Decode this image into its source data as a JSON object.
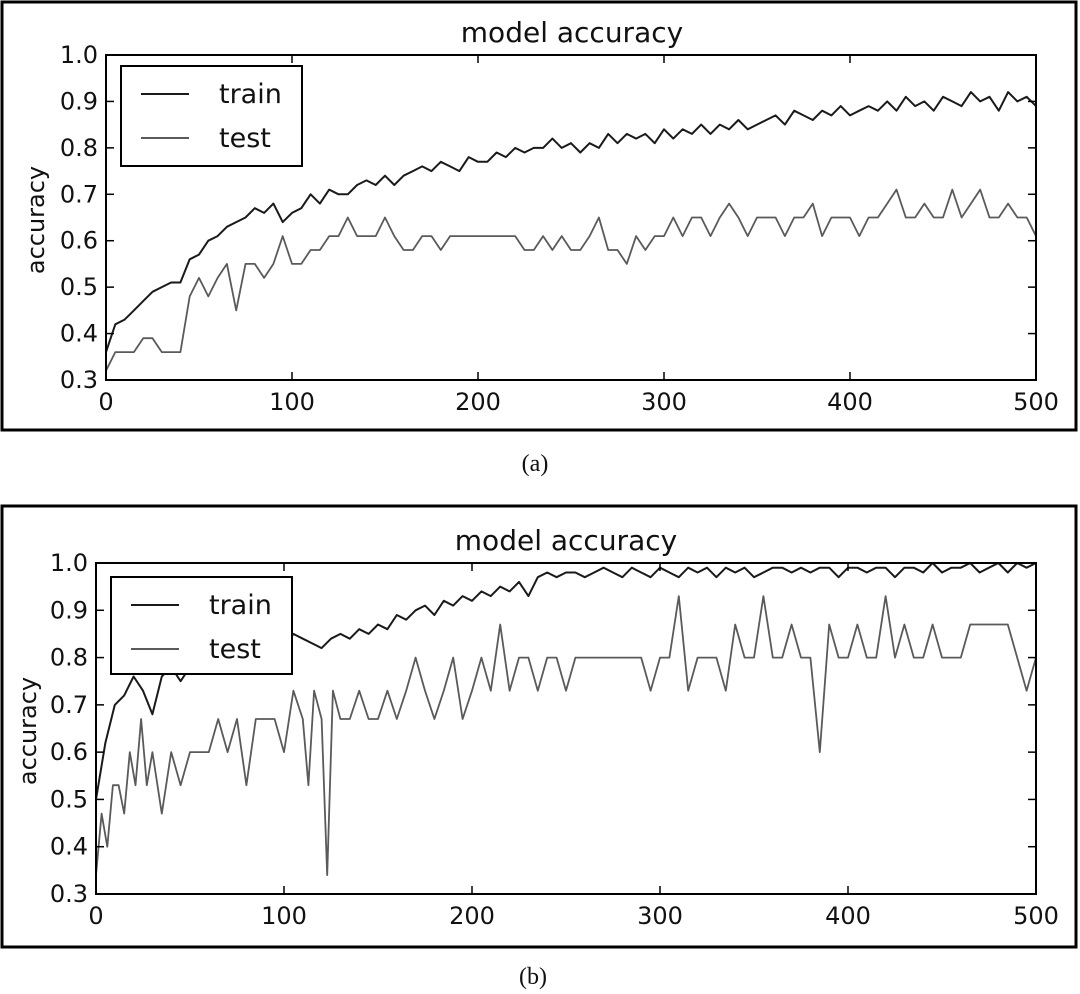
{
  "chart_data": [
    {
      "panel": "a",
      "type": "line",
      "title": "model accuracy",
      "xlabel": "",
      "ylabel": "accuracy",
      "caption": "(a)",
      "xlim": [
        0,
        500
      ],
      "ylim": [
        0.3,
        1.0
      ],
      "xticks": [
        0,
        100,
        200,
        300,
        400,
        500
      ],
      "yticks": [
        0.3,
        0.4,
        0.5,
        0.6,
        0.7,
        0.8,
        0.9,
        1.0
      ],
      "grid": false,
      "legend_position": "top-left",
      "series": [
        {
          "name": "train",
          "color": "#1a1a1a",
          "x": [
            0,
            5,
            10,
            15,
            20,
            25,
            30,
            35,
            40,
            45,
            50,
            55,
            60,
            65,
            70,
            75,
            80,
            85,
            90,
            95,
            100,
            105,
            110,
            115,
            120,
            125,
            130,
            135,
            140,
            145,
            150,
            155,
            160,
            165,
            170,
            175,
            180,
            185,
            190,
            195,
            200,
            205,
            210,
            215,
            220,
            225,
            230,
            235,
            240,
            245,
            250,
            255,
            260,
            265,
            270,
            275,
            280,
            285,
            290,
            295,
            300,
            305,
            310,
            315,
            320,
            325,
            330,
            335,
            340,
            345,
            350,
            355,
            360,
            365,
            370,
            375,
            380,
            385,
            390,
            395,
            400,
            405,
            410,
            415,
            420,
            425,
            430,
            435,
            440,
            445,
            450,
            455,
            460,
            465,
            470,
            475,
            480,
            485,
            490,
            495,
            500
          ],
          "y": [
            0.36,
            0.42,
            0.43,
            0.45,
            0.47,
            0.49,
            0.5,
            0.51,
            0.51,
            0.56,
            0.57,
            0.6,
            0.61,
            0.63,
            0.64,
            0.65,
            0.67,
            0.66,
            0.68,
            0.64,
            0.66,
            0.67,
            0.7,
            0.68,
            0.71,
            0.7,
            0.7,
            0.72,
            0.73,
            0.72,
            0.74,
            0.72,
            0.74,
            0.75,
            0.76,
            0.75,
            0.77,
            0.76,
            0.75,
            0.78,
            0.77,
            0.77,
            0.79,
            0.78,
            0.8,
            0.79,
            0.8,
            0.8,
            0.82,
            0.8,
            0.81,
            0.79,
            0.81,
            0.8,
            0.83,
            0.81,
            0.83,
            0.82,
            0.83,
            0.81,
            0.84,
            0.82,
            0.84,
            0.83,
            0.85,
            0.83,
            0.85,
            0.84,
            0.86,
            0.84,
            0.85,
            0.86,
            0.87,
            0.85,
            0.88,
            0.87,
            0.86,
            0.88,
            0.87,
            0.89,
            0.87,
            0.88,
            0.89,
            0.88,
            0.9,
            0.88,
            0.91,
            0.89,
            0.9,
            0.88,
            0.91,
            0.9,
            0.89,
            0.92,
            0.9,
            0.91,
            0.88,
            0.92,
            0.9,
            0.91,
            0.89
          ]
        },
        {
          "name": "test",
          "color": "#5a5a5a",
          "x": [
            0,
            5,
            10,
            15,
            20,
            25,
            30,
            35,
            40,
            45,
            50,
            55,
            60,
            65,
            70,
            75,
            80,
            85,
            90,
            95,
            100,
            105,
            110,
            115,
            120,
            125,
            130,
            135,
            140,
            145,
            150,
            155,
            160,
            165,
            170,
            175,
            180,
            185,
            190,
            195,
            200,
            205,
            210,
            215,
            220,
            225,
            230,
            235,
            240,
            245,
            250,
            255,
            260,
            265,
            270,
            275,
            280,
            285,
            290,
            295,
            300,
            305,
            310,
            315,
            320,
            325,
            330,
            335,
            340,
            345,
            350,
            355,
            360,
            365,
            370,
            375,
            380,
            385,
            390,
            395,
            400,
            405,
            410,
            415,
            420,
            425,
            430,
            435,
            440,
            445,
            450,
            455,
            460,
            465,
            470,
            475,
            480,
            485,
            490,
            495,
            500
          ],
          "y": [
            0.32,
            0.36,
            0.36,
            0.36,
            0.39,
            0.39,
            0.36,
            0.36,
            0.36,
            0.48,
            0.52,
            0.48,
            0.52,
            0.55,
            0.45,
            0.55,
            0.55,
            0.52,
            0.55,
            0.61,
            0.55,
            0.55,
            0.58,
            0.58,
            0.61,
            0.61,
            0.65,
            0.61,
            0.61,
            0.61,
            0.65,
            0.61,
            0.58,
            0.58,
            0.61,
            0.61,
            0.58,
            0.61,
            0.61,
            0.61,
            0.61,
            0.61,
            0.61,
            0.61,
            0.61,
            0.58,
            0.58,
            0.61,
            0.58,
            0.61,
            0.58,
            0.58,
            0.61,
            0.65,
            0.58,
            0.58,
            0.55,
            0.61,
            0.58,
            0.61,
            0.61,
            0.65,
            0.61,
            0.65,
            0.65,
            0.61,
            0.65,
            0.68,
            0.65,
            0.61,
            0.65,
            0.65,
            0.65,
            0.61,
            0.65,
            0.65,
            0.68,
            0.61,
            0.65,
            0.65,
            0.65,
            0.61,
            0.65,
            0.65,
            0.68,
            0.71,
            0.65,
            0.65,
            0.68,
            0.65,
            0.65,
            0.71,
            0.65,
            0.68,
            0.71,
            0.65,
            0.65,
            0.68,
            0.65,
            0.65,
            0.61
          ]
        }
      ]
    },
    {
      "panel": "b",
      "type": "line",
      "title": "model accuracy",
      "xlabel": "",
      "ylabel": "accuracy",
      "caption": "(b)",
      "xlim": [
        0,
        500
      ],
      "ylim": [
        0.3,
        1.0
      ],
      "xticks": [
        0,
        100,
        200,
        300,
        400,
        500
      ],
      "yticks": [
        0.3,
        0.4,
        0.5,
        0.6,
        0.7,
        0.8,
        0.9,
        1.0
      ],
      "grid": false,
      "legend_position": "top-left",
      "series": [
        {
          "name": "train",
          "color": "#1a1a1a",
          "x": [
            0,
            5,
            10,
            15,
            20,
            25,
            30,
            35,
            40,
            45,
            50,
            55,
            60,
            65,
            70,
            75,
            80,
            85,
            90,
            95,
            100,
            105,
            110,
            115,
            120,
            125,
            130,
            135,
            140,
            145,
            150,
            155,
            160,
            165,
            170,
            175,
            180,
            185,
            190,
            195,
            200,
            205,
            210,
            215,
            220,
            225,
            230,
            235,
            240,
            245,
            250,
            255,
            260,
            265,
            270,
            275,
            280,
            285,
            290,
            295,
            300,
            305,
            310,
            315,
            320,
            325,
            330,
            335,
            340,
            345,
            350,
            355,
            360,
            365,
            370,
            375,
            380,
            385,
            390,
            395,
            400,
            405,
            410,
            415,
            420,
            425,
            430,
            435,
            440,
            445,
            450,
            455,
            460,
            465,
            470,
            475,
            480,
            485,
            490,
            495,
            500
          ],
          "y": [
            0.5,
            0.62,
            0.7,
            0.72,
            0.76,
            0.73,
            0.68,
            0.76,
            0.78,
            0.75,
            0.78,
            0.8,
            0.79,
            0.8,
            0.81,
            0.8,
            0.82,
            0.83,
            0.82,
            0.84,
            0.83,
            0.85,
            0.84,
            0.83,
            0.82,
            0.84,
            0.85,
            0.84,
            0.86,
            0.85,
            0.87,
            0.86,
            0.89,
            0.88,
            0.9,
            0.91,
            0.89,
            0.92,
            0.91,
            0.93,
            0.92,
            0.94,
            0.93,
            0.95,
            0.94,
            0.96,
            0.93,
            0.97,
            0.98,
            0.97,
            0.98,
            0.98,
            0.97,
            0.98,
            0.99,
            0.98,
            0.97,
            0.99,
            0.98,
            0.97,
            0.99,
            0.98,
            0.97,
            0.99,
            0.98,
            0.99,
            0.97,
            0.99,
            0.98,
            0.99,
            0.97,
            0.98,
            0.99,
            0.99,
            0.98,
            0.99,
            0.98,
            0.99,
            0.99,
            0.97,
            0.99,
            0.99,
            0.98,
            0.99,
            0.99,
            0.97,
            0.99,
            0.99,
            0.98,
            1.0,
            0.98,
            0.99,
            0.99,
            1.0,
            0.98,
            0.99,
            1.0,
            0.98,
            1.0,
            0.99,
            1.0
          ]
        },
        {
          "name": "test",
          "color": "#5a5a5a",
          "x": [
            0,
            3,
            6,
            9,
            12,
            15,
            18,
            21,
            24,
            27,
            30,
            35,
            40,
            45,
            50,
            55,
            60,
            65,
            70,
            75,
            80,
            85,
            90,
            95,
            100,
            105,
            110,
            113,
            116,
            120,
            123,
            126,
            130,
            135,
            140,
            145,
            150,
            155,
            160,
            165,
            170,
            175,
            180,
            185,
            190,
            195,
            200,
            205,
            210,
            215,
            220,
            225,
            230,
            235,
            240,
            245,
            250,
            255,
            260,
            265,
            270,
            275,
            280,
            285,
            290,
            295,
            300,
            305,
            310,
            315,
            320,
            325,
            330,
            335,
            340,
            345,
            350,
            355,
            360,
            365,
            370,
            375,
            380,
            385,
            390,
            395,
            400,
            405,
            410,
            415,
            420,
            425,
            430,
            435,
            440,
            445,
            450,
            455,
            460,
            465,
            470,
            475,
            480,
            485,
            490,
            495,
            500
          ],
          "y": [
            0.34,
            0.47,
            0.4,
            0.53,
            0.53,
            0.47,
            0.6,
            0.53,
            0.67,
            0.53,
            0.6,
            0.47,
            0.6,
            0.53,
            0.6,
            0.6,
            0.6,
            0.67,
            0.6,
            0.67,
            0.53,
            0.67,
            0.67,
            0.67,
            0.6,
            0.73,
            0.67,
            0.53,
            0.73,
            0.67,
            0.34,
            0.73,
            0.67,
            0.67,
            0.73,
            0.67,
            0.67,
            0.73,
            0.67,
            0.73,
            0.8,
            0.73,
            0.67,
            0.73,
            0.8,
            0.67,
            0.73,
            0.8,
            0.73,
            0.87,
            0.73,
            0.8,
            0.8,
            0.73,
            0.8,
            0.8,
            0.73,
            0.8,
            0.8,
            0.8,
            0.8,
            0.8,
            0.8,
            0.8,
            0.8,
            0.73,
            0.8,
            0.8,
            0.93,
            0.73,
            0.8,
            0.8,
            0.8,
            0.73,
            0.87,
            0.8,
            0.8,
            0.93,
            0.8,
            0.8,
            0.87,
            0.8,
            0.8,
            0.6,
            0.87,
            0.8,
            0.8,
            0.87,
            0.8,
            0.8,
            0.93,
            0.8,
            0.87,
            0.8,
            0.8,
            0.87,
            0.8,
            0.8,
            0.8,
            0.87,
            0.87,
            0.87,
            0.87,
            0.87,
            0.8,
            0.73,
            0.8
          ]
        }
      ]
    }
  ]
}
